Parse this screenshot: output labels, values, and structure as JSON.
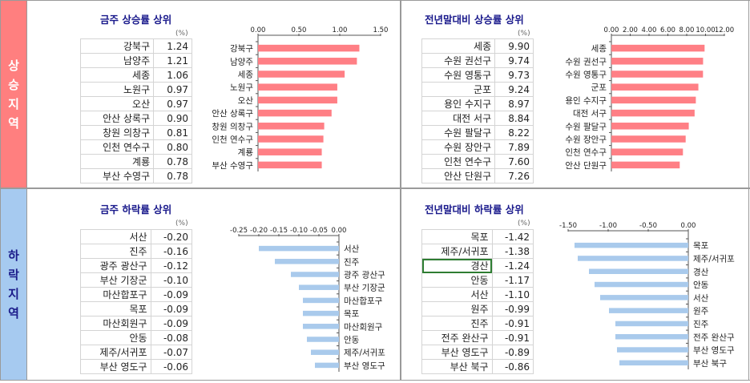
{
  "side_labels": {
    "up": [
      "상",
      "승",
      "지",
      "역"
    ],
    "down": [
      "하",
      "락",
      "지",
      "역"
    ]
  },
  "unit": "(%)",
  "colors": {
    "rise_bar": "#ff7f85",
    "fall_bar": "#a9caec",
    "rise_side": "#ff7f7f",
    "fall_side": "#a6caf0",
    "title": "#1a1a8c"
  },
  "chart_data": [
    {
      "type": "bar",
      "orientation": "horizontal",
      "title": "금주 상승률 상위",
      "categories": [
        "강북구",
        "남양주",
        "세종",
        "노원구",
        "오산",
        "안산 상록구",
        "창원 의창구",
        "인천 연수구",
        "계룡",
        "부산 수영구"
      ],
      "labels": [
        "강북구",
        "남양주",
        "세종",
        "노원구",
        "오산",
        "안산 상록구",
        "창원 의창구",
        "인천 연수구",
        "계룡",
        "부산 수영구"
      ],
      "values": [
        "1.24",
        "1.21",
        "1.06",
        "0.97",
        "0.97",
        "0.90",
        "0.81",
        "0.80",
        "0.78",
        "0.78"
      ],
      "xlim": [
        0,
        1.5
      ],
      "ticks": [
        "0.00",
        "0.50",
        "1.00",
        "1.50"
      ],
      "tick_values": [
        0,
        0.5,
        1.0,
        1.5
      ],
      "axis_side": "top"
    },
    {
      "type": "bar",
      "orientation": "horizontal",
      "title": "전년말대비 상승률 상위",
      "categories": [
        "세종",
        "수원 권선구",
        "수원 영통구",
        "군포",
        "용인 수지구",
        "대전 서구",
        "수원 팔달구",
        "수원 장안구",
        "인천 연수구",
        "안산 단원구"
      ],
      "labels": [
        "세종",
        "수원 권선구",
        "수원 영통구",
        "군포",
        "용인 수지구",
        "대전 서구",
        "수원 팔달구",
        "수원 장안구",
        "인천 연수구",
        "안산 단원구"
      ],
      "values": [
        "9.90",
        "9.74",
        "9.73",
        "9.24",
        "8.97",
        "8.84",
        "8.22",
        "7.89",
        "7.60",
        "7.26"
      ],
      "xlim": [
        0,
        12
      ],
      "ticks": [
        "0.00",
        "2.00",
        "4.00",
        "6.00",
        "8.00",
        "10.00",
        "12.00"
      ],
      "tick_values": [
        0,
        2,
        4,
        6,
        8,
        10,
        12
      ],
      "axis_side": "top"
    },
    {
      "type": "bar",
      "orientation": "horizontal",
      "title": "금주 하락률 상위",
      "categories": [
        "서산",
        "진주",
        "광주 광산구",
        "부산 기장군",
        "마산합포구",
        "목포",
        "마산회원구",
        "안동",
        "제주/서귀포",
        "부산 영도구"
      ],
      "labels": [
        "서산",
        "진주",
        "광주 광산구",
        "부산 기장군",
        "마산합포구",
        "목포",
        "마산회원구",
        "안동",
        "제주/서귀포",
        "부산 영도구"
      ],
      "values": [
        "-0.20",
        "-0.16",
        "-0.12",
        "-0.10",
        "-0.09",
        "-0.09",
        "-0.09",
        "-0.08",
        "-0.07",
        "-0.06"
      ],
      "xlim": [
        -0.25,
        0
      ],
      "ticks": [
        "-0.25",
        "-0.20",
        "-0.15",
        "-0.10",
        "-0.05",
        "0.00"
      ],
      "tick_values": [
        -0.25,
        -0.2,
        -0.15,
        -0.1,
        -0.05,
        0
      ],
      "axis_side": "top"
    },
    {
      "type": "bar",
      "orientation": "horizontal",
      "title": "전년말대비 하락률 상위",
      "categories": [
        "목포",
        "제주/서귀포",
        "경산",
        "안동",
        "서산",
        "원주",
        "진주",
        "전주 완산구",
        "부산 영도구",
        "부산 북구"
      ],
      "labels": [
        "목포",
        "제주/서귀포",
        "경산",
        "안동",
        "서산",
        "원주",
        "진주",
        "전주 완산구",
        "부산 영도구",
        "부산 북구"
      ],
      "values": [
        "-1.42",
        "-1.38",
        "-1.24",
        "-1.17",
        "-1.10",
        "-0.99",
        "-0.91",
        "-0.91",
        "-0.89",
        "-0.86"
      ],
      "xlim": [
        -1.5,
        0
      ],
      "ticks": [
        "-1.50",
        "-1.00",
        "-0.50",
        "0.00"
      ],
      "tick_values": [
        -1.5,
        -1.0,
        -0.5,
        0
      ],
      "axis_side": "top",
      "selected_row": 2
    }
  ]
}
